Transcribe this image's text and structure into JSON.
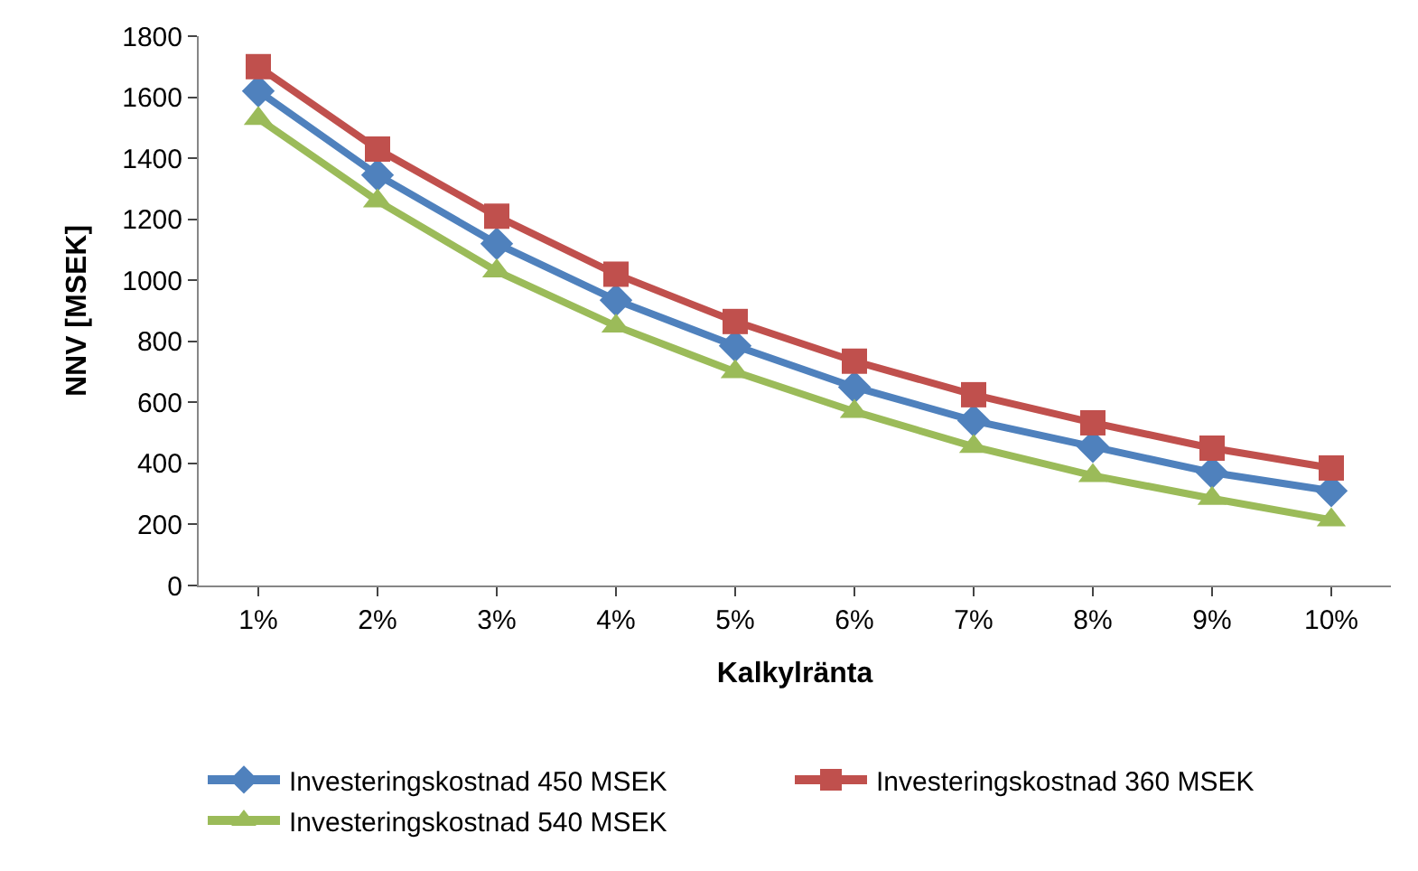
{
  "chart_data": {
    "type": "line",
    "xlabel": "Kalkylränta",
    "ylabel": "NNV [MSEK]",
    "categories": [
      "1%",
      "2%",
      "3%",
      "4%",
      "5%",
      "6%",
      "7%",
      "8%",
      "9%",
      "10%"
    ],
    "series": [
      {
        "name": "Investeringskostnad 450 MSEK",
        "color": "#4f81bd",
        "marker": "diamond",
        "values": [
          1620,
          1345,
          1120,
          935,
          785,
          650,
          540,
          455,
          370,
          310
        ]
      },
      {
        "name": "Investeringskostnad 360 MSEK",
        "color": "#c0504d",
        "marker": "square",
        "values": [
          1700,
          1430,
          1210,
          1020,
          865,
          735,
          625,
          533,
          450,
          385
        ]
      },
      {
        "name": "Investeringskostnad 540 MSEK",
        "color": "#9bbb59",
        "marker": "triangle",
        "values": [
          1530,
          1260,
          1030,
          850,
          700,
          570,
          455,
          360,
          285,
          215
        ]
      }
    ],
    "ylim": [
      0,
      1800
    ],
    "yticks": [
      0,
      200,
      400,
      600,
      800,
      1000,
      1200,
      1400,
      1600,
      1800
    ],
    "legend": "bottom",
    "line_style": "solid"
  }
}
